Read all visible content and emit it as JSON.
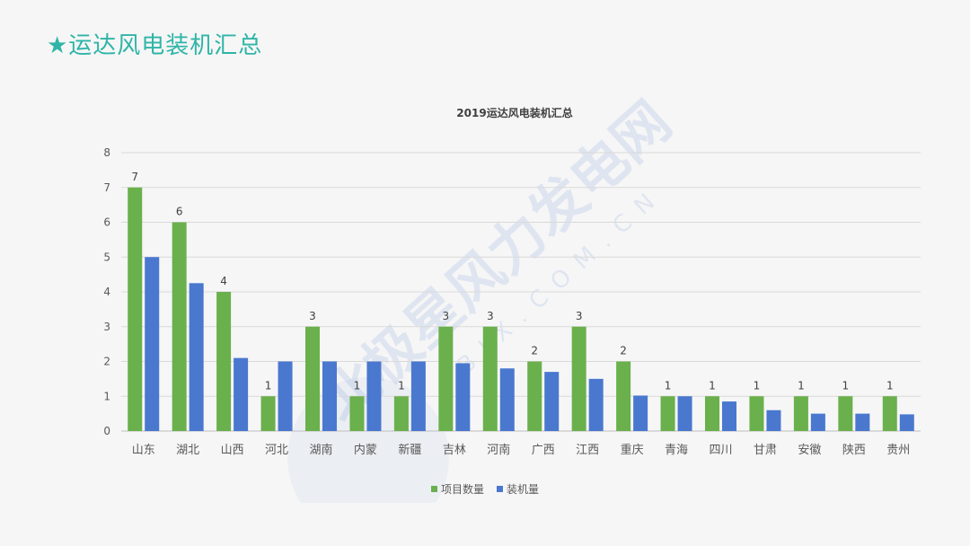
{
  "slide": {
    "title": "★运达风电装机汇总"
  },
  "watermark": {
    "text": "北极星风力发电网",
    "subtext": "BJX.COM.CN"
  },
  "colors": {
    "series1": "#6ab04c",
    "series2": "#4a78cf",
    "title": "#2fb5a8",
    "grid": "#d9d9d9"
  },
  "chart_data": {
    "type": "bar",
    "title": "2019运达风电装机汇总",
    "xlabel": "",
    "ylabel": "",
    "ylim": [
      0,
      8
    ],
    "yticks": [
      0,
      1,
      2,
      3,
      4,
      5,
      6,
      7,
      8
    ],
    "grid": true,
    "legend_position": "bottom",
    "categories": [
      "山东",
      "湖北",
      "山西",
      "河北",
      "湖南",
      "内蒙",
      "新疆",
      "吉林",
      "河南",
      "广西",
      "江西",
      "重庆",
      "青海",
      "四川",
      "甘肃",
      "安徽",
      "陕西",
      "贵州"
    ],
    "series": [
      {
        "name": "项目数量",
        "values": [
          7,
          6,
          4,
          1,
          3,
          1,
          1,
          3,
          3,
          2,
          3,
          2,
          1,
          1,
          1,
          1,
          1,
          1
        ],
        "labels": true
      },
      {
        "name": "装机量",
        "values": [
          5.0,
          4.25,
          2.1,
          2.0,
          2.0,
          2.0,
          2.0,
          1.95,
          1.8,
          1.7,
          1.5,
          1.02,
          1.0,
          0.85,
          0.6,
          0.5,
          0.5,
          0.48
        ],
        "labels": false
      }
    ]
  }
}
